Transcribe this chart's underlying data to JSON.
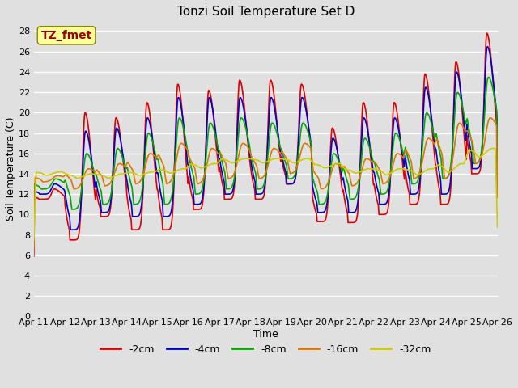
{
  "title": "Tonzi Soil Temperature Set D",
  "xlabel": "Time",
  "ylabel": "Soil Temperature (C)",
  "annotation": "TZ_fmet",
  "ylim": [
    0,
    29
  ],
  "yticks": [
    0,
    2,
    4,
    6,
    8,
    10,
    12,
    14,
    16,
    18,
    20,
    22,
    24,
    26,
    28
  ],
  "xtick_labels": [
    "Apr 11",
    "Apr 12",
    "Apr 13",
    "Apr 14",
    "Apr 15",
    "Apr 16",
    "Apr 17",
    "Apr 18",
    "Apr 19",
    "Apr 20",
    "Apr 21",
    "Apr 22",
    "Apr 23",
    "Apr 24",
    "Apr 25",
    "Apr 26"
  ],
  "series_colors": [
    "#dd0000",
    "#0000cc",
    "#00aa00",
    "#dd7700",
    "#cccc00"
  ],
  "series_labels": [
    "-2cm",
    "-4cm",
    "-8cm",
    "-16cm",
    "-32cm"
  ],
  "background_color": "#e0e0e0",
  "plot_bg_color": "#e0e0e0",
  "grid_color": "#ffffff",
  "annotation_bg": "#ffff99",
  "annotation_fg": "#990000",
  "figsize": [
    6.4,
    4.8
  ],
  "dpi": 100,
  "title_fontsize": 11,
  "axis_fontsize": 9,
  "tick_fontsize": 8,
  "legend_fontsize": 9,
  "linewidth": 1.2
}
